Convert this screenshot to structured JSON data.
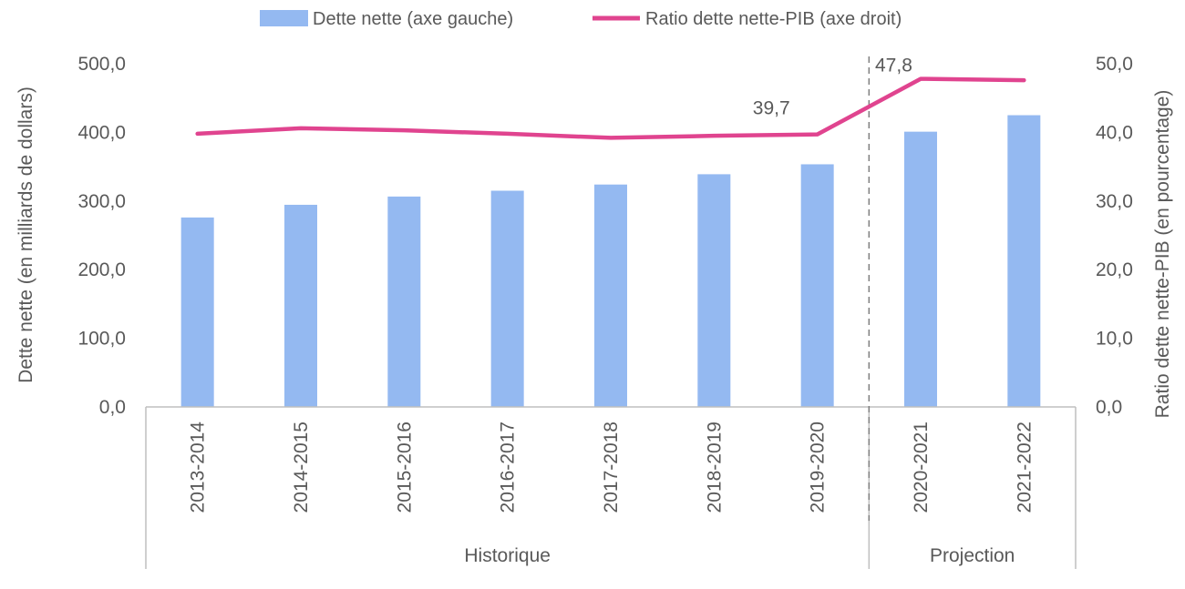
{
  "chart_data": {
    "type": "bar",
    "categories": [
      "2013-2014",
      "2014-2015",
      "2015-2016",
      "2016-2017",
      "2017-2018",
      "2018-2019",
      "2019-2020",
      "2020-2021",
      "2021-2022"
    ],
    "series": [
      {
        "name": "Dette nette (axe gauche)",
        "type": "bar",
        "axis": "left",
        "color": "#94b9f1",
        "values": [
          276,
          294.5,
          306.5,
          315,
          324,
          339,
          353.5,
          401,
          425
        ]
      },
      {
        "name": "Ratio dette nette-PIB (axe droit)",
        "type": "line",
        "axis": "right",
        "color": "#e0448f",
        "values": [
          39.8,
          40.6,
          40.3,
          39.8,
          39.2,
          39.5,
          39.7,
          47.8,
          47.6
        ]
      }
    ],
    "data_labels": [
      {
        "series": 1,
        "index": 6,
        "text": "39,7"
      },
      {
        "series": 1,
        "index": 7,
        "text": "47,8"
      }
    ],
    "ylabel": "Dette nette (en milliards de dollars)",
    "y2label": "Ratio dette nette-PIB (en pourcentage)",
    "ylim": [
      0,
      500
    ],
    "y2lim": [
      0,
      50
    ],
    "yticks": [
      "0,0",
      "100,0",
      "200,0",
      "300,0",
      "400,0",
      "500,0"
    ],
    "y2ticks": [
      "0,0",
      "10,0",
      "20,0",
      "30,0",
      "40,0",
      "50,0"
    ],
    "groups": [
      {
        "label": "Historique",
        "from": 0,
        "to": 6
      },
      {
        "label": "Projection",
        "from": 7,
        "to": 8
      }
    ],
    "divider_after_index": 6,
    "legend_position": "top",
    "grid": false
  }
}
